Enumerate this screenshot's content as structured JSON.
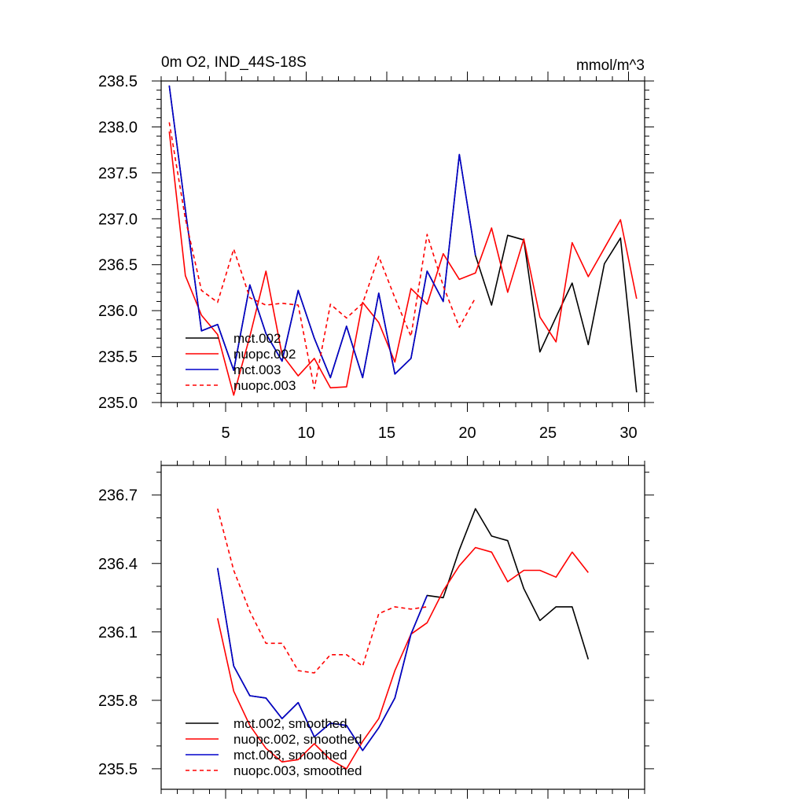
{
  "chart_data": [
    {
      "type": "line",
      "title": "0m O2, IND_44S-18S",
      "units": "mmol/m^3",
      "xlim": [
        1,
        31
      ],
      "ylim": [
        235.0,
        238.5
      ],
      "x_ticks": [
        5,
        10,
        15,
        20,
        25,
        30
      ],
      "y_ticks": [
        235.0,
        235.5,
        236.0,
        236.5,
        237.0,
        237.5,
        238.0,
        238.5
      ],
      "series": [
        {
          "name": "mct.002",
          "color": "#000000",
          "dash": false,
          "x": [
            1.5,
            2.5,
            3.5,
            4.5,
            5.5,
            6.5,
            7.5,
            8.5,
            9.5,
            10.5,
            11.5,
            12.5,
            13.5,
            14.5,
            15.5,
            16.5,
            17.5,
            18.5,
            19.5,
            20.5,
            21.5,
            22.5,
            23.5,
            24.5,
            25.5,
            26.5,
            27.5,
            28.5,
            29.5,
            30.5
          ],
          "values": [
            238.45,
            237.1,
            235.78,
            235.85,
            235.35,
            236.28,
            235.75,
            235.45,
            236.22,
            235.7,
            235.27,
            235.83,
            235.27,
            236.19,
            235.31,
            235.48,
            236.43,
            236.1,
            237.7,
            236.6,
            236.06,
            236.82,
            236.77,
            235.55,
            235.93,
            236.3,
            235.63,
            236.51,
            236.79,
            235.11
          ]
        },
        {
          "name": "nuopc.002",
          "color": "#ff0000",
          "dash": false,
          "x": [
            1.5,
            2.5,
            3.5,
            4.5,
            5.5,
            6.5,
            7.5,
            8.5,
            9.5,
            10.5,
            11.5,
            12.5,
            13.5,
            14.5,
            15.5,
            16.5,
            17.5,
            18.5,
            19.5,
            20.5,
            21.5,
            22.5,
            23.5,
            24.5,
            25.5,
            26.5,
            27.5,
            28.5,
            29.5,
            30.5
          ],
          "values": [
            237.95,
            236.38,
            235.95,
            235.74,
            235.08,
            235.72,
            236.43,
            235.52,
            235.29,
            235.48,
            235.16,
            235.17,
            236.09,
            235.87,
            235.44,
            236.24,
            236.07,
            236.62,
            236.34,
            236.41,
            236.9,
            236.2,
            236.78,
            235.93,
            235.66,
            236.74,
            236.37,
            236.68,
            236.99,
            236.13
          ]
        },
        {
          "name": "mct.003",
          "color": "#0000cc",
          "dash": false,
          "x": [
            1.5,
            2.5,
            3.5,
            4.5,
            5.5,
            6.5,
            7.5,
            8.5,
            9.5,
            10.5,
            11.5,
            12.5,
            13.5,
            14.5,
            15.5,
            16.5,
            17.5,
            18.5,
            19.5,
            20.5
          ],
          "values": [
            238.45,
            237.1,
            235.78,
            235.85,
            235.35,
            236.28,
            235.75,
            235.45,
            236.22,
            235.7,
            235.27,
            235.83,
            235.27,
            236.19,
            235.31,
            235.48,
            236.43,
            236.1,
            237.7,
            236.6
          ]
        },
        {
          "name": "nuopc.003",
          "color": "#ff0000",
          "dash": true,
          "x": [
            1.5,
            2.5,
            3.5,
            4.5,
            5.5,
            6.5,
            7.5,
            8.5,
            9.5,
            10.5,
            11.5,
            12.5,
            13.5,
            14.5,
            15.5,
            16.5,
            17.5,
            18.5,
            19.5,
            20.5
          ],
          "values": [
            238.05,
            237.0,
            236.22,
            236.09,
            236.67,
            236.14,
            236.06,
            236.08,
            236.06,
            235.15,
            236.07,
            235.92,
            236.08,
            236.59,
            236.14,
            235.72,
            236.83,
            236.27,
            235.82,
            236.14
          ]
        }
      ]
    },
    {
      "type": "line",
      "xlim": [
        1,
        31
      ],
      "ylim": [
        235.41,
        236.83
      ],
      "x_ticks": [
        5,
        10,
        15,
        20,
        25,
        30
      ],
      "y_ticks": [
        235.5,
        235.8,
        236.1,
        236.4,
        236.7
      ],
      "y_tick_labels": [
        "235.5",
        "235.8",
        "236.1",
        "236.4",
        "236.7"
      ],
      "series": [
        {
          "name": "mct.002, smoothed",
          "color": "#000000",
          "dash": false,
          "x": [
            4.5,
            5.5,
            6.5,
            7.5,
            8.5,
            9.5,
            10.5,
            11.5,
            12.5,
            13.5,
            14.5,
            15.5,
            16.5,
            17.5,
            18.5,
            19.5,
            20.5,
            21.5,
            22.5,
            23.5,
            24.5,
            25.5,
            26.5,
            27.5
          ],
          "values": [
            236.38,
            235.95,
            235.82,
            235.81,
            235.72,
            235.79,
            235.64,
            235.7,
            235.69,
            235.58,
            235.68,
            235.81,
            236.09,
            236.26,
            236.25,
            236.46,
            236.64,
            236.52,
            236.5,
            236.29,
            236.15,
            236.21,
            236.21,
            235.98
          ]
        },
        {
          "name": "nuopc.002, smoothed",
          "color": "#ff0000",
          "dash": false,
          "x": [
            4.5,
            5.5,
            6.5,
            7.5,
            8.5,
            9.5,
            10.5,
            11.5,
            12.5,
            13.5,
            14.5,
            15.5,
            16.5,
            17.5,
            18.5,
            19.5,
            20.5,
            21.5,
            22.5,
            23.5,
            24.5,
            25.5,
            26.5,
            27.5
          ],
          "values": [
            236.16,
            235.84,
            235.69,
            235.59,
            235.53,
            235.54,
            235.61,
            235.54,
            235.5,
            235.62,
            235.72,
            235.93,
            236.09,
            236.14,
            236.28,
            236.39,
            236.47,
            236.45,
            236.32,
            236.37,
            236.37,
            236.34,
            236.45,
            236.36
          ]
        },
        {
          "name": "mct.003, smoothed",
          "color": "#0000cc",
          "dash": false,
          "x": [
            4.5,
            5.5,
            6.5,
            7.5,
            8.5,
            9.5,
            10.5,
            11.5,
            12.5,
            13.5,
            14.5,
            15.5,
            16.5,
            17.5
          ],
          "values": [
            236.38,
            235.95,
            235.82,
            235.81,
            235.72,
            235.79,
            235.64,
            235.7,
            235.69,
            235.58,
            235.68,
            235.81,
            236.09,
            236.26
          ]
        },
        {
          "name": "nuopc.003, smoothed",
          "color": "#ff0000",
          "dash": true,
          "x": [
            4.5,
            5.5,
            6.5,
            7.5,
            8.5,
            9.5,
            10.5,
            11.5,
            12.5,
            13.5,
            14.5,
            15.5,
            16.5,
            17.5
          ],
          "values": [
            236.64,
            236.37,
            236.19,
            236.05,
            236.05,
            235.93,
            235.92,
            236.0,
            236.0,
            235.95,
            236.18,
            236.21,
            236.2,
            236.21
          ]
        }
      ]
    }
  ]
}
